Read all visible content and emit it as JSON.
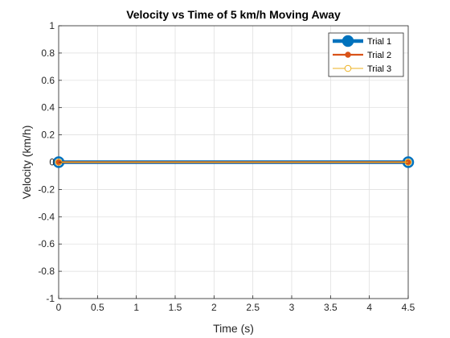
{
  "chart_data": {
    "type": "line",
    "title": "Velocity vs Time of 5 km/h Moving Away",
    "xlabel": "Time (s)",
    "ylabel": "Velocity (km/h)",
    "xlim": [
      0,
      4.5
    ],
    "ylim": [
      -1,
      1
    ],
    "x_ticks": [
      "0",
      "0.5",
      "1",
      "1.5",
      "2",
      "2.5",
      "3",
      "3.5",
      "4",
      "4.5"
    ],
    "y_ticks": [
      "1",
      "0.8",
      "0.6",
      "0.4",
      "0.2",
      "0",
      "-0.2",
      "-0.4",
      "-0.6",
      "-0.8",
      "-1"
    ],
    "grid": true,
    "legend_position": "top-right",
    "series": [
      {
        "name": "Trial 1",
        "color": "#0072BD",
        "x": [
          0,
          4.5
        ],
        "y": [
          0,
          0
        ]
      },
      {
        "name": "Trial 2",
        "color": "#D95319",
        "x": [
          0,
          4.5
        ],
        "y": [
          0,
          0
        ]
      },
      {
        "name": "Trial 3",
        "color": "#EDB120",
        "x": [
          0,
          4.5
        ],
        "y": [
          0,
          0
        ]
      }
    ]
  }
}
